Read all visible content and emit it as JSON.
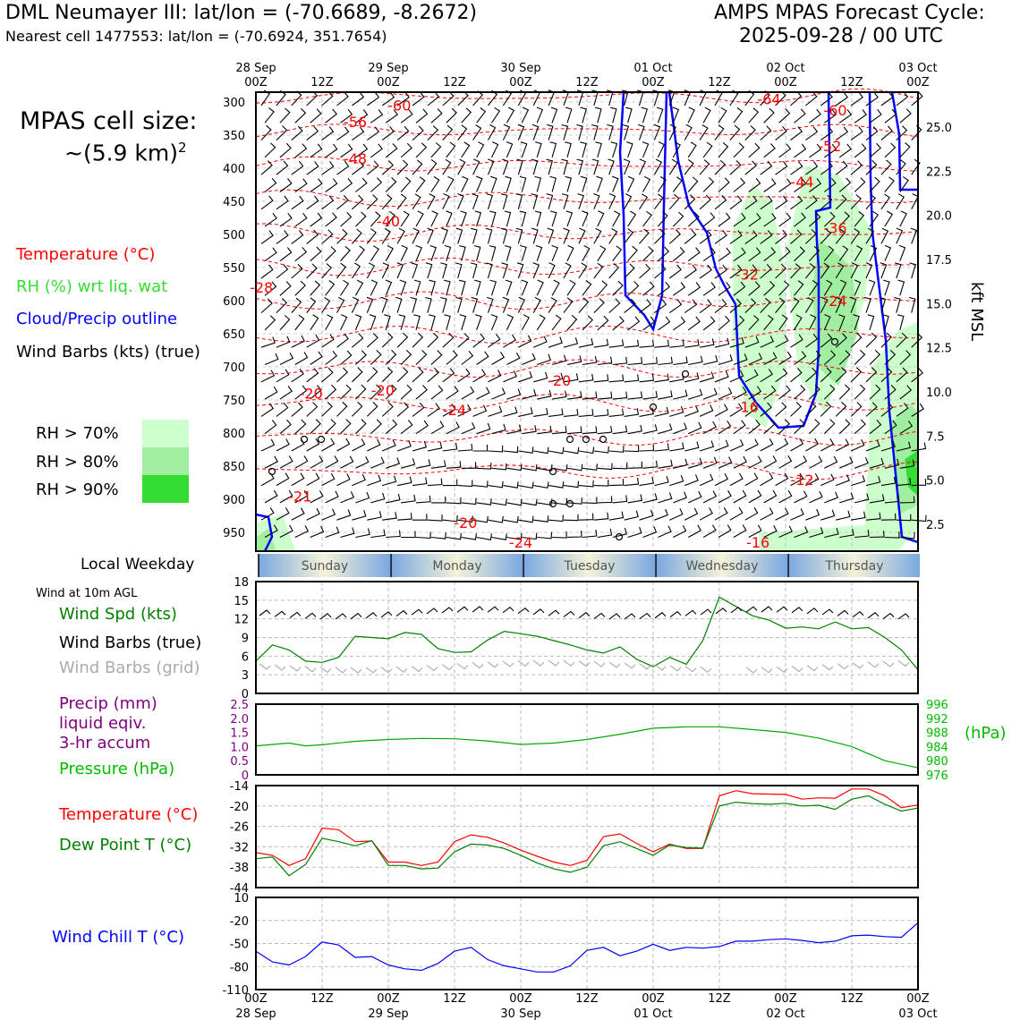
{
  "header": {
    "station_title": "DML Neumayer III: lat/lon = (-70.6689, -8.2672)",
    "nearest_cell": "Nearest cell 1477553: lat/lon = (-70.6924, 351.7654)",
    "forecast_title": "AMPS MPAS Forecast Cycle:",
    "forecast_cycle": "2025-09-28 / 00 UTC"
  },
  "sidebar": {
    "cell_size_label": "MPAS cell size:",
    "cell_size_value": "~(5.9 km)",
    "cell_size_exp": "2",
    "legend_temperature": "Temperature (°C)",
    "legend_rh": "RH (%) wrt liq. wat",
    "legend_cloud": "Cloud/Precip outline",
    "legend_wind": "Wind Barbs (kts) (true)",
    "rh_gt70": "RH > 70%",
    "rh_gt80": "RH > 80%",
    "rh_gt90": "RH > 90%",
    "local_weekday": "Local Weekday",
    "wind_10m": "Wind at 10m AGL",
    "wind_spd": "Wind Spd (kts)",
    "wind_barbs_true": "Wind Barbs (true)",
    "wind_barbs_grid": "Wind Barbs (grid)",
    "precip_line1": "Precip (mm)",
    "precip_line2": "liquid eqiv.",
    "precip_line3": "3-hr accum",
    "pressure": "Pressure (hPa)",
    "temperature": "Temperature (°C)",
    "dewpoint": "Dew Point T (°C)",
    "windchill": "Wind Chill T (°C)",
    "kft_label": "kft MSL",
    "hpa_label": "(hPa)"
  },
  "colors": {
    "temperature": "#ff0000",
    "rh": "#33cc33",
    "cloud": "#0000ff",
    "wind": "#000000",
    "wind_grid": "#aaaaaa",
    "precip": "#800080",
    "pressure": "#00aa00",
    "dewpoint": "#008000",
    "windchill": "#0000ff",
    "rh70": "#ccffcc",
    "rh80": "#a0eea0",
    "rh90": "#33dd33"
  },
  "chart_data": [
    {
      "type": "line",
      "panel": "upper-air time-height section",
      "x_time_labels": [
        {
          "label": "00Z",
          "date": "28 Sep"
        },
        {
          "label": "12Z",
          "date": ""
        },
        {
          "label": "00Z",
          "date": "29 Sep"
        },
        {
          "label": "12Z",
          "date": ""
        },
        {
          "label": "00Z",
          "date": "30 Sep"
        },
        {
          "label": "12Z",
          "date": ""
        },
        {
          "label": "00Z",
          "date": "01 Oct"
        },
        {
          "label": "12Z",
          "date": ""
        },
        {
          "label": "00Z",
          "date": "02 Oct"
        },
        {
          "label": "12Z",
          "date": ""
        },
        {
          "label": "00Z",
          "date": "03 Oct"
        }
      ],
      "pressure_levels_hpa": [
        300,
        350,
        400,
        450,
        500,
        550,
        600,
        650,
        700,
        750,
        800,
        850,
        900,
        950
      ],
      "height_kft": [
        "25.0",
        "22.5",
        "20.0",
        "17.5",
        "15.0",
        "12.5",
        "10.0",
        "7.5",
        "5.0",
        "2.5"
      ],
      "height_kft_values": [
        25.0,
        22.5,
        20.0,
        17.5,
        15.0,
        12.5,
        10.0,
        7.5,
        5.0,
        2.5
      ],
      "temperature_contour_labels": [
        {
          "text": "-60",
          "hour": 26,
          "p": 305
        },
        {
          "text": "-56",
          "hour": 18,
          "p": 330
        },
        {
          "text": "-48",
          "hour": 18,
          "p": 385
        },
        {
          "text": "-40",
          "hour": 24,
          "p": 480
        },
        {
          "text": "-28",
          "hour": 1,
          "p": 580
        },
        {
          "text": "-20",
          "hour": 10,
          "p": 740
        },
        {
          "text": "-20",
          "hour": 23,
          "p": 735
        },
        {
          "text": "-24",
          "hour": 36,
          "p": 765
        },
        {
          "text": "-20",
          "hour": 55,
          "p": 720
        },
        {
          "text": "-21",
          "hour": 8,
          "p": 895
        },
        {
          "text": "-20",
          "hour": 38,
          "p": 935
        },
        {
          "text": "-24",
          "hour": 48,
          "p": 965
        },
        {
          "text": "-64",
          "hour": 93,
          "p": 295
        },
        {
          "text": "-60",
          "hour": 105,
          "p": 312
        },
        {
          "text": "-52",
          "hour": 104,
          "p": 366
        },
        {
          "text": "-44",
          "hour": 99,
          "p": 420
        },
        {
          "text": "-36",
          "hour": 105,
          "p": 490
        },
        {
          "text": "-32",
          "hour": 89,
          "p": 560
        },
        {
          "text": "-24",
          "hour": 105,
          "p": 600
        },
        {
          "text": "-16",
          "hour": 89,
          "p": 760
        },
        {
          "text": "-12",
          "hour": 99,
          "p": 870
        },
        {
          "text": "-16",
          "hour": 91,
          "p": 965
        }
      ]
    },
    {
      "type": "line",
      "title": "Wind Spd (kts)",
      "ylim": [
        0,
        18
      ],
      "yticks": [
        0,
        3,
        6,
        9,
        12,
        15,
        18
      ],
      "x_hours": [
        0,
        3,
        6,
        9,
        12,
        15,
        18,
        21,
        24,
        27,
        30,
        33,
        36,
        39,
        42,
        45,
        48,
        51,
        54,
        57,
        60,
        63,
        66,
        69,
        72,
        75,
        78,
        81,
        84,
        87,
        90,
        93,
        96,
        99,
        102,
        105,
        108,
        111,
        114,
        117,
        120
      ],
      "values": [
        5.2,
        7.8,
        7,
        5.2,
        5,
        5.8,
        9.2,
        9,
        8.8,
        9.8,
        9.5,
        7.2,
        6.6,
        6.7,
        8.6,
        10,
        9.6,
        9.2,
        8.5,
        7.8,
        7,
        6.5,
        7.5,
        5.5,
        4.3,
        5.8,
        4.7,
        8.5,
        15.5,
        14,
        12.5,
        11.8,
        10.5,
        10.7,
        10.4,
        11.5,
        10.4,
        10.6,
        9,
        7,
        3.8
      ]
    },
    {
      "type": "line",
      "title": "Pressure (hPa)",
      "precip_ylim": [
        0,
        2.5
      ],
      "precip_yticks": [
        "0",
        "0.5",
        "1.0",
        "1.5",
        "2.0",
        "2.5"
      ],
      "pressure_ylim": [
        976,
        996
      ],
      "pressure_yticks": [
        976,
        980,
        984,
        988,
        992,
        996
      ],
      "x_hours": [
        0,
        6,
        9,
        12,
        18,
        24,
        30,
        36,
        42,
        48,
        54,
        60,
        66,
        72,
        78,
        84,
        90,
        96,
        102,
        108,
        114,
        120
      ],
      "values": [
        984.2,
        985,
        984.2,
        984.5,
        985.5,
        986,
        986.3,
        986.2,
        985.6,
        984.6,
        985,
        986,
        987.5,
        989.2,
        989.6,
        989.6,
        988.8,
        988,
        986.4,
        984,
        980,
        978
      ]
    },
    {
      "type": "line",
      "title": "Temperature / Dew Point (°C)",
      "ylim": [
        -44,
        -14
      ],
      "yticks": [
        -44,
        -38,
        -32,
        -26,
        -20,
        -14
      ],
      "x_hours": [
        0,
        3,
        6,
        9,
        12,
        15,
        18,
        21,
        24,
        27,
        30,
        33,
        36,
        39,
        42,
        45,
        48,
        51,
        54,
        57,
        60,
        63,
        66,
        69,
        72,
        75,
        78,
        81,
        84,
        87,
        90,
        93,
        96,
        99,
        102,
        105,
        108,
        111,
        114,
        117,
        120
      ],
      "series": [
        {
          "name": "Temperature",
          "values": [
            -33.7,
            -34.5,
            -37.5,
            -35.5,
            -26.5,
            -27,
            -30.5,
            -30.3,
            -36.5,
            -36.5,
            -37.5,
            -36.5,
            -30.5,
            -28.5,
            -29.2,
            -30.9,
            -33,
            -34.8,
            -36.5,
            -37.5,
            -36,
            -29,
            -28.2,
            -31,
            -33.5,
            -31.2,
            -32.5,
            -32.5,
            -17,
            -15.5,
            -16.4,
            -16.5,
            -16.6,
            -18,
            -17.6,
            -17.7,
            -15,
            -15,
            -17,
            -20.5,
            -19.7
          ]
        },
        {
          "name": "Dew Point",
          "values": [
            -35.5,
            -35,
            -40.5,
            -37.2,
            -29.5,
            -30.5,
            -31.7,
            -30.2,
            -37.5,
            -37.5,
            -38.5,
            -38.3,
            -33.5,
            -31.2,
            -31.5,
            -32.5,
            -34.5,
            -36.8,
            -38.5,
            -39.5,
            -38,
            -31.7,
            -30.5,
            -32.5,
            -34.5,
            -31.5,
            -32.2,
            -32.4,
            -20,
            -18.9,
            -19.3,
            -19.5,
            -19.2,
            -20,
            -19.8,
            -21,
            -18,
            -17,
            -19.5,
            -21.5,
            -20.6
          ]
        }
      ]
    },
    {
      "type": "line",
      "title": "Wind Chill T (°C)",
      "ylim": [
        -110,
        10
      ],
      "yticks": [
        -110,
        -80,
        -50,
        -20,
        10
      ],
      "x_hours": [
        0,
        3,
        6,
        9,
        12,
        15,
        18,
        21,
        24,
        27,
        30,
        33,
        36,
        39,
        42,
        45,
        48,
        51,
        54,
        57,
        60,
        63,
        66,
        69,
        72,
        75,
        78,
        81,
        84,
        87,
        90,
        93,
        96,
        99,
        102,
        105,
        108,
        111,
        114,
        117,
        120
      ],
      "values": [
        -60,
        -74,
        -78,
        -67,
        -48,
        -52,
        -68,
        -67,
        -78,
        -83,
        -85,
        -76,
        -60,
        -55,
        -71,
        -79,
        -83,
        -87,
        -87,
        -79,
        -59,
        -55,
        -66,
        -60,
        -51,
        -59,
        -55,
        -56,
        -54,
        -47,
        -47,
        -45,
        -44,
        -46,
        -49,
        -47,
        -40,
        -39,
        -41,
        -42,
        -23
      ]
    }
  ],
  "axes": {
    "time_ticks": [
      "00Z",
      "12Z",
      "00Z",
      "12Z",
      "00Z",
      "12Z",
      "00Z",
      "12Z",
      "00Z",
      "12Z",
      "00Z"
    ],
    "dates": [
      "28 Sep",
      "29 Sep",
      "30 Sep",
      "01 Oct",
      "02 Oct",
      "03 Oct"
    ],
    "weekdays": [
      "Sunday",
      "Monday",
      "Tuesday",
      "Wednesday",
      "Thursday"
    ]
  }
}
